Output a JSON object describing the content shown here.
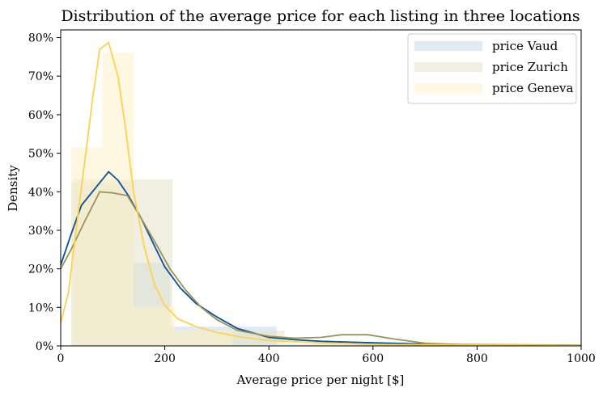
{
  "chart_data": {
    "type": "histogram+kde",
    "title": "Distribution of the average price for each listing in three locations",
    "xlabel": "Average price per night [$]",
    "ylabel": "Density",
    "xlim": [
      0,
      1000
    ],
    "ylim": [
      0,
      0.82
    ],
    "x_ticks": [
      0,
      200,
      400,
      600,
      800,
      1000
    ],
    "x_tick_labels": [
      "0",
      "200",
      "400",
      "600",
      "800",
      "1000"
    ],
    "y_ticks": [
      0,
      0.1,
      0.2,
      0.3,
      0.4,
      0.5,
      0.6,
      0.7,
      0.8
    ],
    "y_tick_labels": [
      "0%",
      "10%",
      "20%",
      "30%",
      "40%",
      "50%",
      "60%",
      "70%",
      "80%"
    ],
    "grid": false,
    "legend_position": "top-right",
    "series": [
      {
        "name": "price Vaud",
        "color": "#0b4f9c",
        "fill": "#c9d9e8",
        "histogram": [
          {
            "x0": 20,
            "x1": 140,
            "y": 0.425
          },
          {
            "x0": 140,
            "x1": 210,
            "y": 0.215
          },
          {
            "x0": 210,
            "x1": 415,
            "y": 0.05
          }
        ],
        "kde": [
          [
            0,
            0.21
          ],
          [
            20,
            0.29
          ],
          [
            40,
            0.365
          ],
          [
            70,
            0.415
          ],
          [
            92,
            0.452
          ],
          [
            110,
            0.43
          ],
          [
            130,
            0.39
          ],
          [
            155,
            0.33
          ],
          [
            180,
            0.26
          ],
          [
            200,
            0.205
          ],
          [
            230,
            0.15
          ],
          [
            260,
            0.11
          ],
          [
            300,
            0.075
          ],
          [
            340,
            0.045
          ],
          [
            400,
            0.022
          ],
          [
            450,
            0.016
          ],
          [
            500,
            0.012
          ],
          [
            600,
            0.008
          ],
          [
            700,
            0.005
          ],
          [
            800,
            0.003
          ],
          [
            1000,
            0.001
          ]
        ]
      },
      {
        "name": "price Zurich",
        "color": "#9a9458",
        "fill": "#e3e2c9",
        "histogram": [
          {
            "x0": 25,
            "x1": 215,
            "y": 0.432
          },
          {
            "x0": 215,
            "x1": 430,
            "y": 0.04
          },
          {
            "x0": 430,
            "x1": 730,
            "y": 0.006
          }
        ],
        "kde": [
          [
            0,
            0.2
          ],
          [
            20,
            0.25
          ],
          [
            45,
            0.32
          ],
          [
            75,
            0.4
          ],
          [
            100,
            0.397
          ],
          [
            128,
            0.39
          ],
          [
            155,
            0.33
          ],
          [
            185,
            0.26
          ],
          [
            210,
            0.2
          ],
          [
            240,
            0.145
          ],
          [
            270,
            0.1
          ],
          [
            300,
            0.068
          ],
          [
            340,
            0.04
          ],
          [
            400,
            0.025
          ],
          [
            450,
            0.02
          ],
          [
            500,
            0.022
          ],
          [
            540,
            0.029
          ],
          [
            590,
            0.029
          ],
          [
            640,
            0.018
          ],
          [
            700,
            0.007
          ],
          [
            760,
            0.004
          ],
          [
            850,
            0.003
          ],
          [
            1000,
            0.002
          ]
        ]
      },
      {
        "name": "price Geneva",
        "color": "#ffd24d",
        "fill": "#fff0c8",
        "histogram": [
          {
            "x0": 20,
            "x1": 80,
            "y": 0.515
          },
          {
            "x0": 80,
            "x1": 140,
            "y": 0.76
          },
          {
            "x0": 140,
            "x1": 220,
            "y": 0.1
          },
          {
            "x0": 220,
            "x1": 330,
            "y": 0.04
          }
        ],
        "kde": [
          [
            0,
            0.06
          ],
          [
            15,
            0.14
          ],
          [
            35,
            0.36
          ],
          [
            50,
            0.52
          ],
          [
            62,
            0.65
          ],
          [
            75,
            0.77
          ],
          [
            92,
            0.787
          ],
          [
            110,
            0.7
          ],
          [
            125,
            0.56
          ],
          [
            140,
            0.4
          ],
          [
            160,
            0.26
          ],
          [
            180,
            0.16
          ],
          [
            200,
            0.105
          ],
          [
            225,
            0.07
          ],
          [
            260,
            0.05
          ],
          [
            300,
            0.035
          ],
          [
            350,
            0.022
          ],
          [
            400,
            0.014
          ],
          [
            500,
            0.008
          ],
          [
            600,
            0.004
          ],
          [
            800,
            0.002
          ],
          [
            1000,
            0.001
          ]
        ]
      }
    ]
  }
}
